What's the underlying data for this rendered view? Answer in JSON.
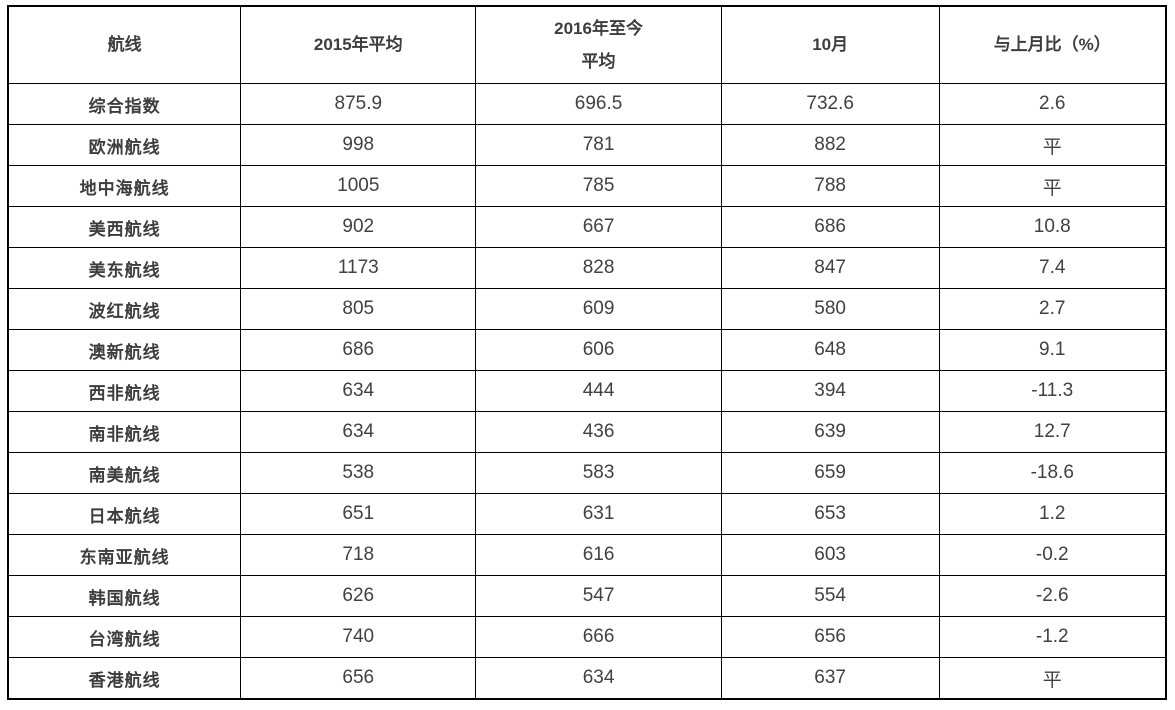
{
  "table": {
    "columns": [
      "航线",
      "2015年平均",
      "2016年至今\n平均",
      "10月",
      "与上月比（%）"
    ],
    "rows": [
      {
        "route": "综合指数",
        "avg2015": "875.9",
        "avg2016": "696.5",
        "oct": "732.6",
        "mom": "2.6"
      },
      {
        "route": "欧洲航线",
        "avg2015": "998",
        "avg2016": "781",
        "oct": "882",
        "mom": "平"
      },
      {
        "route": "地中海航线",
        "avg2015": "1005",
        "avg2016": "785",
        "oct": "788",
        "mom": "平"
      },
      {
        "route": "美西航线",
        "avg2015": "902",
        "avg2016": "667",
        "oct": "686",
        "mom": "10.8"
      },
      {
        "route": "美东航线",
        "avg2015": "1173",
        "avg2016": "828",
        "oct": "847",
        "mom": "7.4"
      },
      {
        "route": "波红航线",
        "avg2015": "805",
        "avg2016": "609",
        "oct": "580",
        "mom": "2.7"
      },
      {
        "route": "澳新航线",
        "avg2015": "686",
        "avg2016": "606",
        "oct": "648",
        "mom": "9.1"
      },
      {
        "route": "西非航线",
        "avg2015": "634",
        "avg2016": "444",
        "oct": "394",
        "mom": "-11.3"
      },
      {
        "route": "南非航线",
        "avg2015": "634",
        "avg2016": "436",
        "oct": "639",
        "mom": "12.7"
      },
      {
        "route": "南美航线",
        "avg2015": "538",
        "avg2016": "583",
        "oct": "659",
        "mom": "-18.6"
      },
      {
        "route": "日本航线",
        "avg2015": "651",
        "avg2016": "631",
        "oct": "653",
        "mom": "1.2"
      },
      {
        "route": "东南亚航线",
        "avg2015": "718",
        "avg2016": "616",
        "oct": "603",
        "mom": "-0.2"
      },
      {
        "route": "韩国航线",
        "avg2015": "626",
        "avg2016": "547",
        "oct": "554",
        "mom": "-2.6"
      },
      {
        "route": "台湾航线",
        "avg2015": "740",
        "avg2016": "666",
        "oct": "656",
        "mom": "-1.2"
      },
      {
        "route": "香港航线",
        "avg2015": "656",
        "avg2016": "634",
        "oct": "637",
        "mom": "平"
      }
    ]
  },
  "chart_data": {
    "type": "table",
    "columns": [
      "航线",
      "2015年平均",
      "2016年至今平均",
      "10月",
      "与上月比（%）"
    ],
    "rows": [
      [
        "综合指数",
        875.9,
        696.5,
        732.6,
        "2.6"
      ],
      [
        "欧洲航线",
        998,
        781,
        882,
        "平"
      ],
      [
        "地中海航线",
        1005,
        785,
        788,
        "平"
      ],
      [
        "美西航线",
        902,
        667,
        686,
        "10.8"
      ],
      [
        "美东航线",
        1173,
        828,
        847,
        "7.4"
      ],
      [
        "波红航线",
        805,
        609,
        580,
        "2.7"
      ],
      [
        "澳新航线",
        686,
        606,
        648,
        "9.1"
      ],
      [
        "西非航线",
        634,
        444,
        394,
        "-11.3"
      ],
      [
        "南非航线",
        634,
        436,
        639,
        "12.7"
      ],
      [
        "南美航线",
        538,
        583,
        659,
        "-18.6"
      ],
      [
        "日本航线",
        651,
        631,
        653,
        "1.2"
      ],
      [
        "东南亚航线",
        718,
        616,
        603,
        "-0.2"
      ],
      [
        "韩国航线",
        626,
        547,
        554,
        "-2.6"
      ],
      [
        "台湾航线",
        740,
        666,
        656,
        "-1.2"
      ],
      [
        "香港航线",
        656,
        634,
        637,
        "平"
      ]
    ]
  },
  "colors": {
    "border": "#000000",
    "text": "#3d3d3d",
    "background": "#ffffff"
  }
}
